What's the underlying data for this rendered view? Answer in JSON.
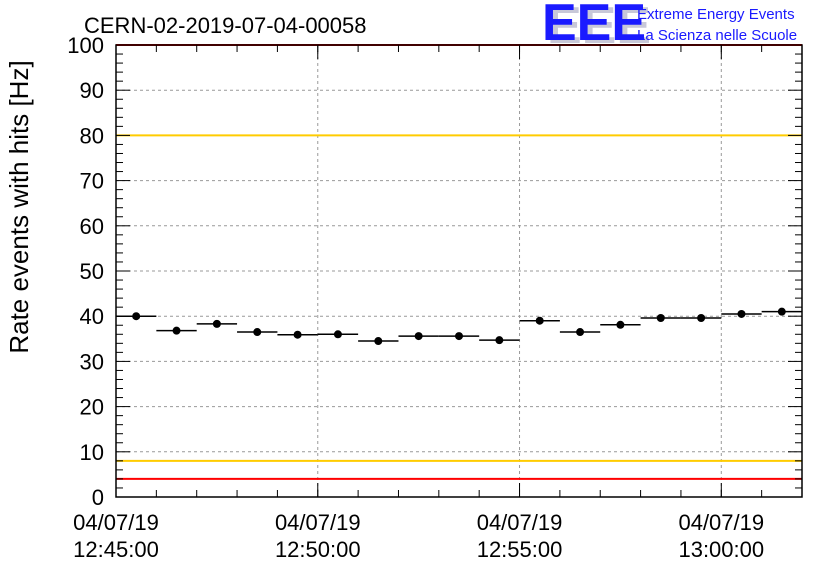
{
  "chart_data": {
    "type": "scatter",
    "title": "CERN-02-2019-07-04-00058",
    "ylabel": "Rate events with hits [Hz]",
    "xlabel": "",
    "ylim": [
      0,
      100
    ],
    "yticks": [
      "0",
      "10",
      "20",
      "30",
      "40",
      "50",
      "60",
      "70",
      "80",
      "90",
      "100"
    ],
    "xlim": [
      "2019-07-04 12:45:00",
      "2019-07-04 13:02:00"
    ],
    "xticks": [
      {
        "date": "04/07/19",
        "time": "12:45:00"
      },
      {
        "date": "04/07/19",
        "time": "12:50:00"
      },
      {
        "date": "04/07/19",
        "time": "12:55:00"
      },
      {
        "date": "04/07/19",
        "time": "13:00:00"
      }
    ],
    "grid": true,
    "bin_width_seconds": 60,
    "points": [
      {
        "x": "12:45:30",
        "y": 40.0
      },
      {
        "x": "12:46:30",
        "y": 36.8
      },
      {
        "x": "12:47:30",
        "y": 38.3
      },
      {
        "x": "12:48:30",
        "y": 36.5
      },
      {
        "x": "12:49:30",
        "y": 35.9
      },
      {
        "x": "12:50:30",
        "y": 36.0
      },
      {
        "x": "12:51:30",
        "y": 34.5
      },
      {
        "x": "12:52:30",
        "y": 35.6
      },
      {
        "x": "12:53:30",
        "y": 35.6
      },
      {
        "x": "12:54:30",
        "y": 34.7
      },
      {
        "x": "12:55:30",
        "y": 39.0
      },
      {
        "x": "12:56:30",
        "y": 36.5
      },
      {
        "x": "12:57:30",
        "y": 38.1
      },
      {
        "x": "12:58:30",
        "y": 39.6
      },
      {
        "x": "12:59:30",
        "y": 39.6
      },
      {
        "x": "13:00:30",
        "y": 40.5
      },
      {
        "x": "13:01:30",
        "y": 41.0
      }
    ],
    "reference_lines": [
      {
        "y": 100,
        "color": "#ff0000"
      },
      {
        "y": 80,
        "color": "#ffcc00"
      },
      {
        "y": 8,
        "color": "#ffcc00"
      },
      {
        "y": 4,
        "color": "#ff0000"
      }
    ],
    "marker_color": "#000000"
  },
  "logo": {
    "mark": "EEE",
    "line1": "Extreme Energy Events",
    "line2": "La Scienza nelle Scuole",
    "color": "#1a1aff"
  }
}
